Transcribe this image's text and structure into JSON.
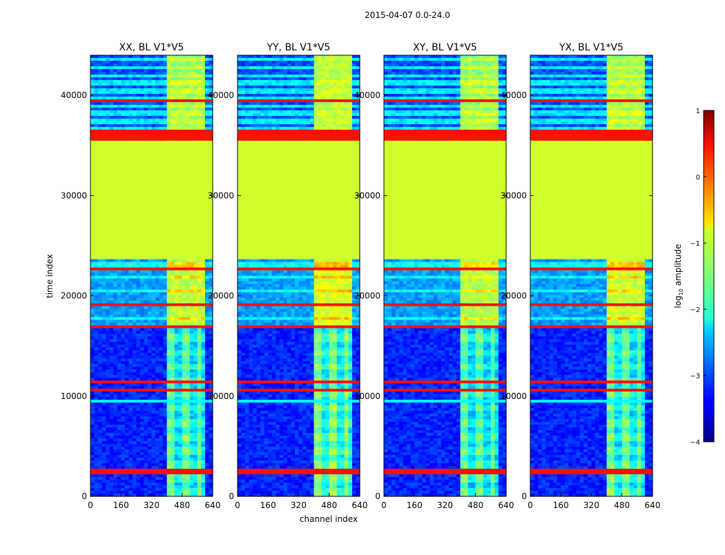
{
  "chart_data": {
    "type": "heatmap",
    "suptitle": "2015-04-07 0.0-24.0",
    "xlabel": "channel index",
    "ylabel": "time index",
    "xlim": [
      0,
      640
    ],
    "ylim": [
      0,
      44000
    ],
    "xticks": [
      0,
      160,
      320,
      480,
      640
    ],
    "yticks": [
      0,
      10000,
      20000,
      30000,
      40000
    ],
    "panels": [
      {
        "title": "XX, BL V1*V5",
        "level_shift": 0.0
      },
      {
        "title": "YY, BL V1*V5",
        "level_shift": 0.15
      },
      {
        "title": "XY, BL V1*V5",
        "level_shift": -0.05
      },
      {
        "title": "YX, BL V1*V5",
        "level_shift": 0.05
      }
    ],
    "colorbar": {
      "label": "log10 amplitude",
      "label_main": "log",
      "label_sub": "10",
      "label_tail": " amplitude",
      "range": [
        -4,
        1
      ],
      "ticks": [
        "1",
        "0",
        "−1",
        "−2",
        "−3",
        "−4"
      ],
      "tick_values": [
        1,
        0,
        -1,
        -2,
        -3,
        -4
      ],
      "colormap": "jet"
    },
    "bands": {
      "background_level": -3.2,
      "signal_channels": [
        400,
        600
      ],
      "signal_level": -1.8,
      "flat_region": {
        "time": [
          23600,
          35600
        ],
        "level": -1.1
      },
      "orange_band": {
        "time": [
          35600,
          36500
        ],
        "level": 0.3
      },
      "flagged_lines": [
        {
          "time": 2300,
          "level": 0.3
        },
        {
          "time": 2500,
          "level": 0.3
        },
        {
          "time": 9600,
          "level": -2.1
        },
        {
          "time": 10600,
          "level": 0.3
        },
        {
          "time": 11300,
          "level": 0.3
        },
        {
          "time": 16800,
          "level": 0.3
        },
        {
          "time": 19200,
          "level": 0.3
        },
        {
          "time": 22800,
          "level": 0.3
        },
        {
          "time": 39500,
          "level": 0.3
        }
      ]
    }
  }
}
